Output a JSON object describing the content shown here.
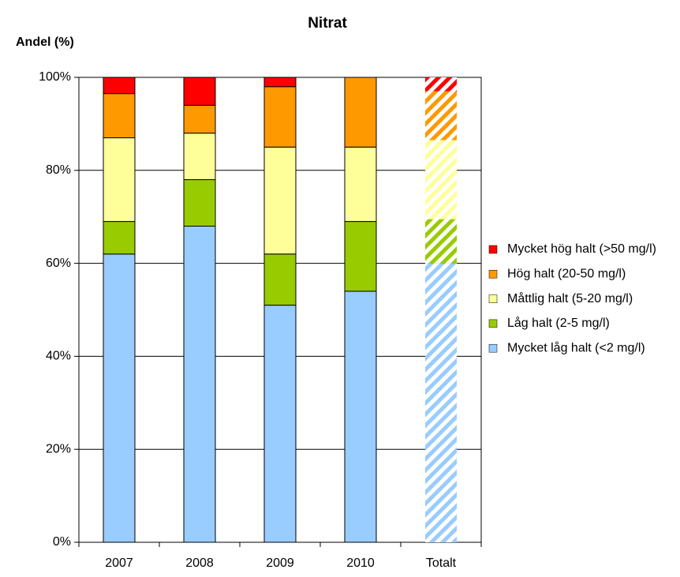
{
  "chart_data": {
    "type": "stacked_bar",
    "title": "Nitrat",
    "y_label": "Andel (%)",
    "categories": [
      "2007",
      "2008",
      "2009",
      "2010",
      "Totalt"
    ],
    "series": [
      {
        "name": "Mycket låg halt (<2 mg/l)",
        "color": "#99ccff",
        "values": [
          62,
          68,
          51,
          54,
          60
        ]
      },
      {
        "name": "Låg halt (2-5 mg/l)",
        "color": "#99cc00",
        "values": [
          7,
          10,
          11,
          15,
          9.5
        ]
      },
      {
        "name": "Måttlig halt (5-20 mg/l)",
        "color": "#ffff99",
        "values": [
          18,
          10,
          23,
          16,
          17
        ]
      },
      {
        "name": "Hög halt (20-50 mg/l)",
        "color": "#ff9900",
        "values": [
          9.5,
          6,
          13,
          15,
          10.5
        ]
      },
      {
        "name": "Mycket hög halt (>50 mg/l)",
        "color": "#ff0000",
        "values": [
          3.5,
          6,
          2,
          0,
          3
        ]
      }
    ],
    "hatched": [
      false,
      false,
      false,
      false,
      true
    ],
    "ylim": [
      0,
      100
    ],
    "yticks": [
      {
        "value": 0,
        "label": "0%"
      },
      {
        "value": 20,
        "label": "20%"
      },
      {
        "value": 40,
        "label": "40%"
      },
      {
        "value": 60,
        "label": "60%"
      },
      {
        "value": 80,
        "label": "80%"
      },
      {
        "value": 100,
        "label": "100%"
      }
    ],
    "grid": true,
    "legend": "right"
  }
}
